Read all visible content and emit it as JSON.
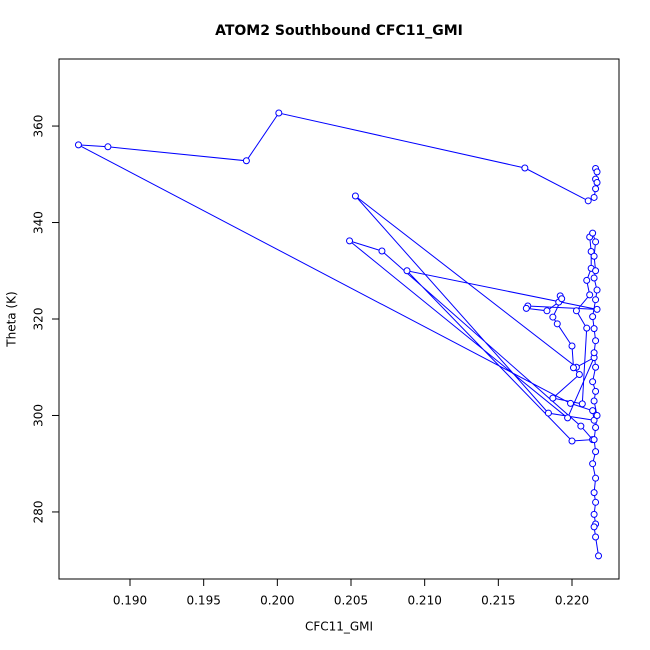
{
  "chart_data": {
    "type": "line",
    "title": "ATOM2 Southbound CFC11_GMI",
    "x_label": "CFC11_GMI",
    "y_label": "Theta (K)",
    "markers": true,
    "x": [
      0.2216,
      0.2217,
      0.2216,
      0.2217,
      0.2216,
      0.2215,
      0.2211,
      0.2168,
      0.2001,
      0.1979,
      0.1885,
      0.1865,
      0.2199,
      0.2214,
      0.2215,
      0.2184,
      0.2053,
      0.2203,
      0.2215,
      0.2197,
      0.2049,
      0.2071,
      0.2206,
      0.2214,
      0.22,
      0.2088,
      0.2217,
      0.217,
      0.2169,
      0.2183,
      0.2191,
      0.2192,
      0.2193,
      0.2187,
      0.219,
      0.22,
      0.2201,
      0.2205,
      0.2187,
      0.2207,
      0.221,
      0.2203,
      0.2212,
      0.221,
      0.2213,
      0.2213,
      0.2212,
      0.2214,
      0.2216,
      0.2215,
      0.2216,
      0.2215,
      0.2217,
      0.2216,
      0.2214,
      0.2215,
      0.2216,
      0.2215,
      0.2216,
      0.2214,
      0.2216,
      0.2215,
      0.2217,
      0.2216,
      0.2215,
      0.2216,
      0.2214,
      0.2216,
      0.2215,
      0.2216,
      0.2215,
      0.2216,
      0.2215,
      0.2216,
      0.2218
    ],
    "series": [
      {
        "color": "#0000ff",
        "values": [
          351.2,
          350.5,
          349.0,
          348.3,
          347.0,
          345.2,
          344.5,
          351.3,
          362.7,
          352.8,
          355.7,
          356.1,
          302.5,
          301.0,
          299.0,
          300.5,
          345.5,
          310.0,
          312.0,
          299.5,
          336.2,
          334.1,
          297.8,
          295.0,
          294.7,
          330.0,
          322.0,
          322.7,
          322.2,
          321.7,
          323.5,
          324.8,
          324.2,
          320.4,
          319.0,
          314.4,
          309.9,
          308.5,
          303.6,
          302.4,
          318.1,
          321.7,
          325.0,
          328.0,
          330.5,
          334.0,
          337.0,
          337.8,
          336.0,
          333.0,
          330.0,
          328.5,
          326.0,
          324.0,
          320.5,
          318.0,
          315.5,
          313.0,
          310.0,
          307.0,
          305.0,
          303.0,
          300.0,
          297.5,
          295.0,
          292.5,
          290.0,
          287.0,
          284.0,
          282.0,
          279.5,
          277.5,
          276.9,
          274.8,
          270.9
        ]
      }
    ],
    "xlim": [
      0.18518,
      0.22319
    ],
    "xticks": [
      {
        "value": 0.19,
        "label": "0.190"
      },
      0.195,
      {
        "value": 0.2,
        "label": "0.200"
      },
      0.205,
      {
        "value": 0.21,
        "label": "0.210"
      },
      0.215,
      {
        "value": 0.22,
        "label": "0.220"
      }
    ],
    "ylim": [
      266.1,
      373.9
    ],
    "yticks": [
      280,
      300,
      320,
      340,
      360
    ]
  }
}
